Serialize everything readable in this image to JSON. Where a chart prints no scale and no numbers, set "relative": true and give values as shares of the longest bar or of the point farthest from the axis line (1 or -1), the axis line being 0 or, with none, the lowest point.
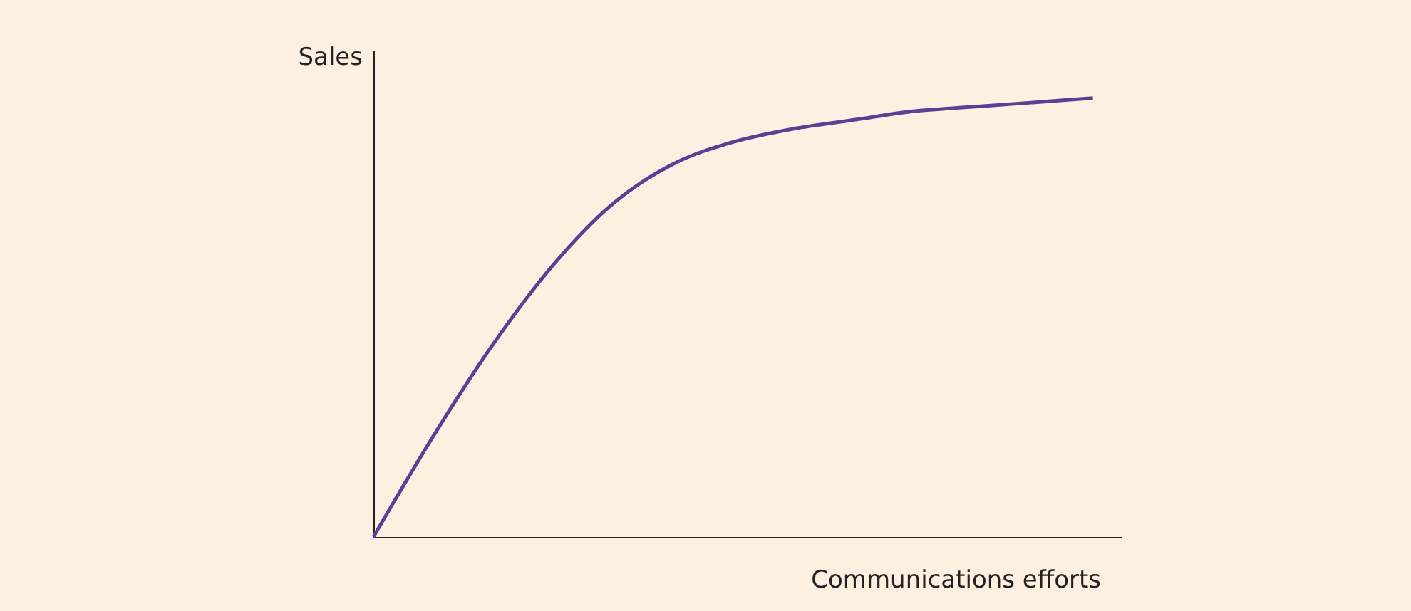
{
  "chart_data": {
    "type": "line",
    "xlabel": "Communications efforts",
    "ylabel": "Sales",
    "relative": true,
    "categories": [
      null,
      null,
      null,
      null,
      null,
      null,
      null,
      null,
      null,
      null,
      null,
      null,
      null
    ],
    "series": [
      {
        "color": "#5b3f94",
        "values": [
          0,
          0.23,
          0.44,
          0.62,
          0.76,
          0.85,
          0.9,
          0.93,
          0.95,
          0.97,
          0.98,
          0.99,
          1
        ]
      }
    ]
  }
}
